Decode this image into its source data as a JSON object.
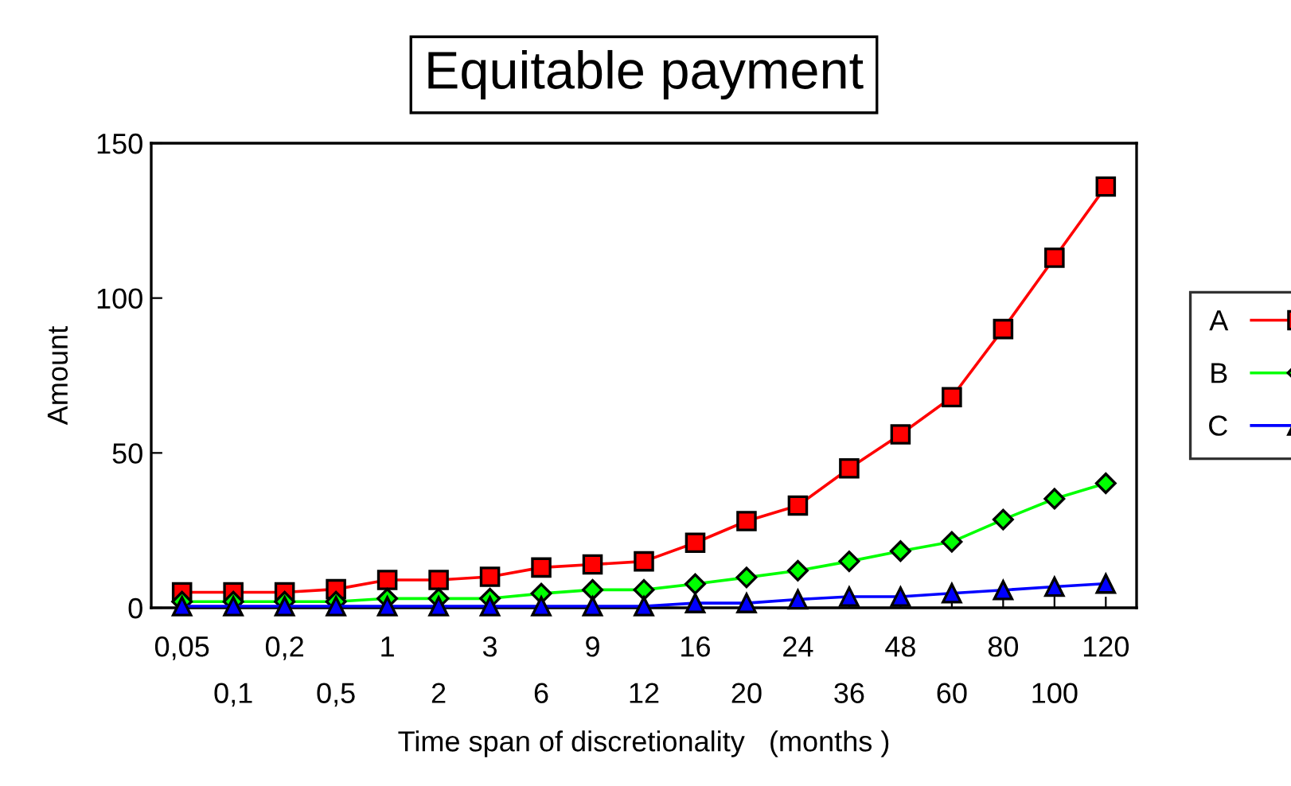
{
  "chart_data": {
    "type": "line",
    "title": "Equitable payment",
    "xlabel": "Time span of discretionality   (months )",
    "ylabel": "Amount",
    "categories": [
      "0,05",
      "0,1",
      "0,2",
      "0,5",
      "1",
      "2",
      "3",
      "6",
      "9",
      "12",
      "16",
      "20",
      "24",
      "36",
      "48",
      "60",
      "80",
      "100",
      "120"
    ],
    "ylim": [
      0,
      150
    ],
    "yticks": [
      0,
      50,
      100,
      150
    ],
    "grid": false,
    "legend": "right",
    "series": [
      {
        "name": "A",
        "color": "#ff0000",
        "marker": "square",
        "values": [
          5,
          5,
          5,
          6,
          9,
          9,
          10,
          13,
          14,
          15,
          21,
          28,
          33,
          45,
          56,
          68,
          90,
          113,
          136
        ]
      },
      {
        "name": "B",
        "color": "#00ff00",
        "marker": "diamond",
        "values": [
          2,
          2,
          2,
          2,
          3,
          3,
          3,
          4.6,
          5.8,
          5.8,
          7.7,
          9.8,
          12,
          15,
          18.3,
          21.3,
          28.5,
          35.2,
          40.2
        ]
      },
      {
        "name": "C",
        "color": "#0000ff",
        "marker": "triangle",
        "values": [
          0.5,
          0.5,
          0.5,
          0.5,
          0.5,
          0.5,
          0.5,
          0.5,
          0.5,
          0.5,
          1.5,
          1.5,
          2.7,
          3.6,
          3.6,
          4.7,
          5.7,
          6.8,
          7.8
        ]
      }
    ]
  }
}
